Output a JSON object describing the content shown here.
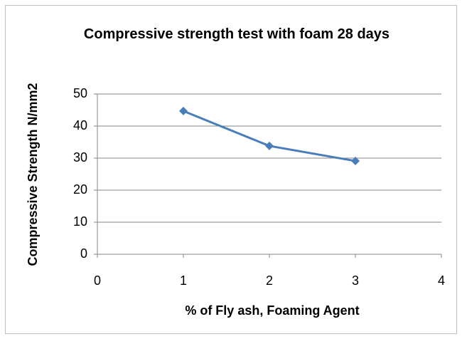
{
  "chart_data": {
    "type": "line",
    "title": "Compressive strength test with foam 28 days",
    "x_label": "% of Fly ash, Foaming Agent",
    "y_label": "Compressive Strength N/mm2",
    "x": [
      1,
      2,
      3
    ],
    "values": [
      44.7,
      33.8,
      29.1
    ],
    "color": "#4a7ebb",
    "marker": "diamond",
    "xlim": [
      0,
      4
    ],
    "xticks": [
      0,
      1,
      2,
      3,
      4
    ],
    "ylim": [
      0,
      50
    ],
    "yticks": [
      0,
      10,
      20,
      30,
      40,
      50
    ],
    "grid": true
  }
}
